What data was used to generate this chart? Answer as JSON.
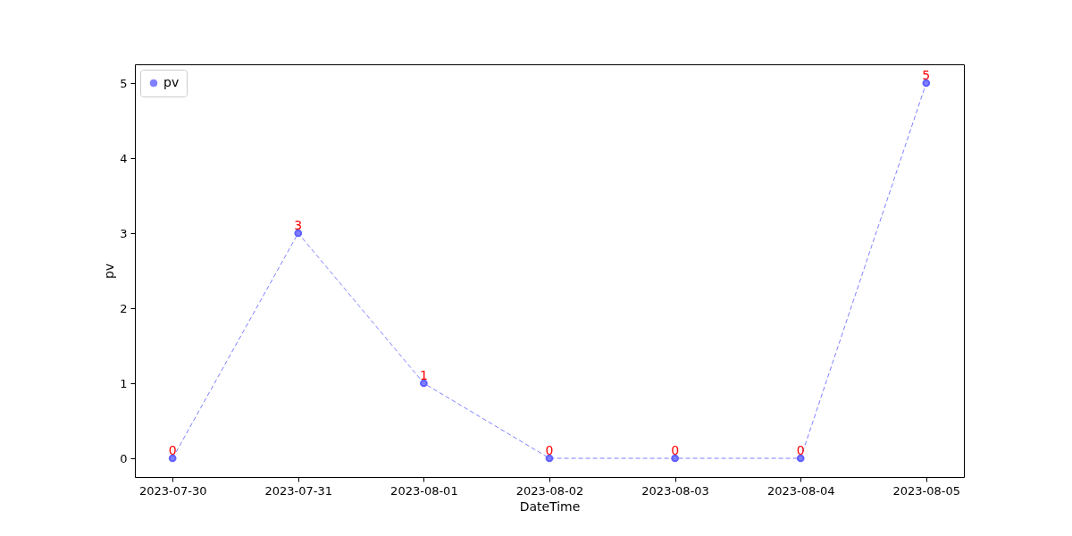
{
  "chart_data": {
    "type": "line",
    "xlabel": "DateTime",
    "ylabel": "pv",
    "categories": [
      "2023-07-30",
      "2023-07-31",
      "2023-08-01",
      "2023-08-02",
      "2023-08-03",
      "2023-08-04",
      "2023-08-05"
    ],
    "series": [
      {
        "name": "pv",
        "color": "#7f7fff",
        "values": [
          0,
          3,
          1,
          0,
          0,
          0,
          5
        ]
      }
    ],
    "ylim": [
      -0.25,
      5.25
    ],
    "yticks": [
      0,
      1,
      2,
      3,
      4,
      5
    ],
    "grid": false,
    "legend": "top left",
    "marker": "circle",
    "line_style": "dashed",
    "data_labels": true
  }
}
